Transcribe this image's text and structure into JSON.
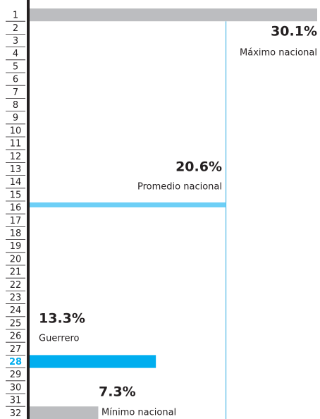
{
  "chart_data": {
    "type": "bar",
    "categories": [
      "1",
      "2",
      "3",
      "4",
      "5",
      "6",
      "7",
      "8",
      "9",
      "10",
      "11",
      "12",
      "13",
      "14",
      "15",
      "16",
      "17",
      "18",
      "19",
      "20",
      "21",
      "22",
      "23",
      "24",
      "25",
      "26",
      "27",
      "28",
      "29",
      "30",
      "31",
      "32"
    ],
    "bars": [
      {
        "category": "1",
        "value": 30.1,
        "value_label": "30.1%",
        "label": "Máximo nacional",
        "color": "#bcbdc0"
      },
      {
        "category": "16",
        "value": 20.6,
        "value_label": "20.6%",
        "label": "Promedio nacional",
        "color": "#6dcff6"
      },
      {
        "category": "28",
        "value": 13.3,
        "value_label": "13.3%",
        "label": "Guerrero",
        "color": "#00aeef"
      },
      {
        "category": "32",
        "value": 7.3,
        "value_label": "7.3%",
        "label": "Mínimo nacional",
        "color": "#bcbdc0"
      }
    ],
    "highlight": "28",
    "highlight_color": "#00aeef",
    "reference_line": {
      "value": 20.6,
      "color": "#29a9e0"
    },
    "xlim": [
      0,
      30.1
    ]
  }
}
